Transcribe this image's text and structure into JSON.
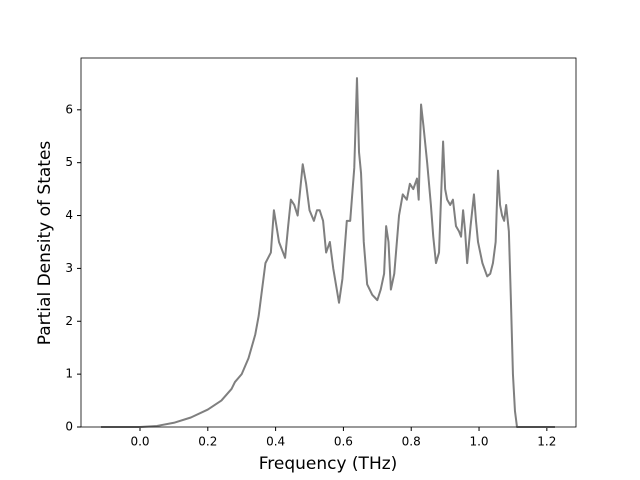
{
  "chart_data": {
    "type": "line",
    "x_label": "Frequency (THz)",
    "y_label": "Partial Density of States",
    "x": [
      -0.115,
      0.0,
      0.05,
      0.1,
      0.15,
      0.2,
      0.24,
      0.27,
      0.28,
      0.3,
      0.32,
      0.34,
      0.35,
      0.36,
      0.37,
      0.378,
      0.386,
      0.395,
      0.41,
      0.428,
      0.437,
      0.445,
      0.455,
      0.465,
      0.48,
      0.49,
      0.5,
      0.513,
      0.522,
      0.53,
      0.54,
      0.549,
      0.56,
      0.57,
      0.587,
      0.597,
      0.61,
      0.62,
      0.632,
      0.64,
      0.646,
      0.652,
      0.66,
      0.67,
      0.685,
      0.7,
      0.71,
      0.72,
      0.726,
      0.733,
      0.74,
      0.75,
      0.764,
      0.775,
      0.787,
      0.796,
      0.806,
      0.817,
      0.822,
      0.829,
      0.836,
      0.847,
      0.858,
      0.865,
      0.873,
      0.882,
      0.894,
      0.9,
      0.906,
      0.915,
      0.923,
      0.932,
      0.941,
      0.947,
      0.953,
      0.959,
      0.965,
      0.975,
      0.985,
      0.991,
      0.997,
      1.01,
      1.024,
      1.033,
      1.041,
      1.049,
      1.056,
      1.062,
      1.068,
      1.074,
      1.08,
      1.088,
      1.094,
      1.1,
      1.106,
      1.112,
      1.224
    ],
    "series": [
      {
        "color": "#7f7f7f",
        "values": [
          0,
          0,
          0.02,
          0.08,
          0.18,
          0.33,
          0.5,
          0.72,
          0.85,
          1.0,
          1.3,
          1.75,
          2.1,
          2.6,
          3.1,
          3.2,
          3.3,
          4.1,
          3.5,
          3.2,
          3.8,
          4.3,
          4.2,
          4.0,
          4.97,
          4.6,
          4.1,
          3.9,
          4.1,
          4.1,
          3.9,
          3.3,
          3.5,
          3.0,
          2.35,
          2.8,
          3.9,
          3.9,
          4.9,
          6.6,
          5.2,
          4.8,
          3.5,
          2.7,
          2.5,
          2.4,
          2.6,
          2.9,
          3.8,
          3.5,
          2.6,
          2.9,
          4.0,
          4.4,
          4.3,
          4.6,
          4.5,
          4.7,
          4.3,
          6.1,
          5.7,
          5.0,
          4.2,
          3.6,
          3.1,
          3.3,
          5.4,
          4.5,
          4.3,
          4.2,
          4.3,
          3.8,
          3.7,
          3.6,
          4.1,
          3.7,
          3.1,
          3.8,
          4.4,
          3.9,
          3.5,
          3.1,
          2.85,
          2.9,
          3.1,
          3.5,
          4.85,
          4.2,
          4.0,
          3.9,
          4.2,
          3.7,
          2.4,
          1.0,
          0.3,
          0,
          0
        ]
      }
    ],
    "xlim": [
      -0.174,
      1.286
    ],
    "ylim": [
      0,
      6.98
    ],
    "xticks": [
      {
        "value": 0,
        "label": "0.0"
      },
      0.2,
      0.4,
      0.6,
      0.8,
      {
        "value": 1,
        "label": "1.0"
      },
      1.2
    ],
    "yticks": [
      0,
      1,
      2,
      3,
      4,
      5,
      6
    ],
    "grid": false
  }
}
